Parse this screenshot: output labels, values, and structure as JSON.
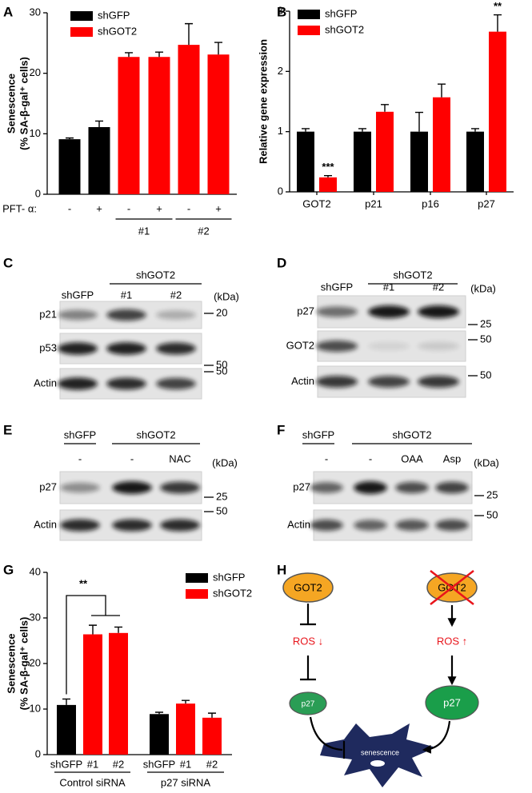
{
  "chart_data": [
    {
      "type": "bar",
      "panel": "A",
      "ylabel": [
        "Senescence",
        "(% SA-β-gal⁺ cells)"
      ],
      "categories": [
        "-",
        "+",
        "-",
        "+",
        "-",
        "+"
      ],
      "xlabel": "PFT- α:",
      "groups": [
        "#1",
        "#2"
      ],
      "series": [
        {
          "name": "shGFP",
          "color": "#000000",
          "values": [
            9.1,
            11.1,
            null,
            null,
            null,
            null
          ],
          "errors": [
            0.2,
            1.0,
            null,
            null,
            null,
            null
          ]
        },
        {
          "name": "shGOT2",
          "color": "#ff0000",
          "values": [
            null,
            null,
            22.7,
            22.7,
            24.7,
            23.1
          ],
          "errors": [
            null,
            null,
            0.7,
            0.8,
            3.5,
            2.0
          ]
        }
      ],
      "ylim": [
        0,
        30
      ],
      "yticks": [
        0,
        10,
        20,
        30
      ]
    },
    {
      "type": "bar",
      "panel": "B",
      "ylabel": [
        "Relative gene expression"
      ],
      "categories": [
        "GOT2",
        "p21",
        "p16",
        "p27"
      ],
      "series": [
        {
          "name": "shGFP",
          "color": "#000000",
          "values": [
            1,
            1,
            1,
            1
          ],
          "errors": [
            0.05,
            0.05,
            0.32,
            0.05
          ]
        },
        {
          "name": "shGOT2",
          "color": "#ff0000",
          "values": [
            0.24,
            1.33,
            1.57,
            2.66
          ],
          "errors": [
            0.03,
            0.12,
            0.22,
            0.28
          ]
        }
      ],
      "annotations": [
        "***",
        "**"
      ],
      "ylim": [
        0,
        3
      ],
      "yticks": [
        0,
        1,
        2,
        3
      ]
    },
    {
      "type": "bar",
      "panel": "G",
      "ylabel": [
        "Senescence",
        "(% SA-β-gal⁺ cells)"
      ],
      "categories": [
        "shGFP",
        "#1",
        "#2",
        "shGFP",
        "#1",
        "#2"
      ],
      "groups": [
        "Control siRNA",
        "p27 siRNA"
      ],
      "series": [
        {
          "name": "shGFP",
          "color": "#000000",
          "values": [
            10.9,
            null,
            null,
            8.9,
            null,
            null
          ],
          "errors": [
            1.3,
            null,
            null,
            0.4,
            null,
            null
          ]
        },
        {
          "name": "shGOT2",
          "color": "#ff0000",
          "values": [
            null,
            26.4,
            26.7,
            null,
            11.2,
            8.1
          ],
          "errors": [
            null,
            2.0,
            1.3,
            null,
            0.7,
            1.0
          ]
        }
      ],
      "annotations": [
        "**"
      ],
      "ylim": [
        0,
        40
      ],
      "yticks": [
        0,
        10,
        20,
        30,
        40
      ]
    }
  ],
  "blots": [
    {
      "panel": "C",
      "headers": [
        "shGOT2"
      ],
      "lanes": [
        "shGFP",
        "#1",
        "#2"
      ],
      "unit": "(kDa)",
      "rows": [
        {
          "label": "p21",
          "markers": [
            20
          ]
        },
        {
          "label": "p53",
          "markers": [
            50
          ]
        },
        {
          "label": "Actin",
          "markers": [
            50
          ]
        }
      ]
    },
    {
      "panel": "D",
      "headers": [
        "shGOT2"
      ],
      "lanes": [
        "shGFP",
        "#1",
        "#2"
      ],
      "unit": "(kDa)",
      "rows": [
        {
          "label": "p27",
          "markers": [
            25
          ]
        },
        {
          "label": "GOT2",
          "markers": [
            50
          ]
        },
        {
          "label": "Actin",
          "markers": [
            50
          ]
        }
      ]
    },
    {
      "panel": "E",
      "headers": [
        "shGFP",
        "shGOT2"
      ],
      "lanes": [
        "-",
        "-",
        "NAC"
      ],
      "unit": "(kDa)",
      "rows": [
        {
          "label": "p27",
          "markers": [
            25
          ]
        },
        {
          "label": "Actin",
          "markers": [
            50
          ]
        }
      ]
    },
    {
      "panel": "F",
      "headers": [
        "shGFP",
        "shGOT2"
      ],
      "lanes": [
        "-",
        "-",
        "OAA",
        "Asp"
      ],
      "unit": "(kDa)",
      "rows": [
        {
          "label": "p27",
          "markers": [
            25
          ]
        },
        {
          "label": "Actin",
          "markers": [
            50
          ]
        }
      ]
    }
  ],
  "diagram": {
    "panel": "H",
    "left": {
      "enzyme": "GOT2",
      "ros": "ROS ↓",
      "p27": "p27"
    },
    "right": {
      "enzyme": "GOT2",
      "ros": "ROS ↑",
      "p27": "p27"
    },
    "outcome": "senescence"
  }
}
